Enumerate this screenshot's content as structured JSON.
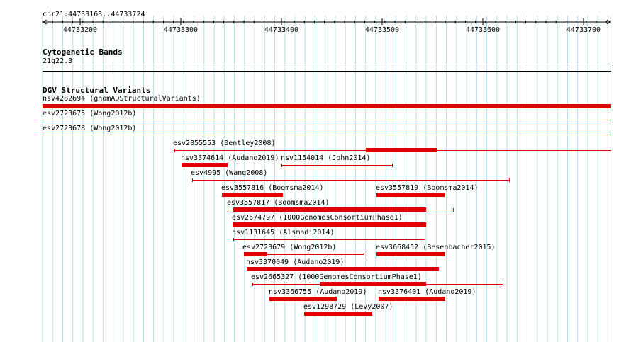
{
  "locus": "chr21:44733163..44733724",
  "ruler": {
    "ticks": [
      {
        "pos": 44733200,
        "label": "44733200"
      },
      {
        "pos": 44733300,
        "label": "44733300"
      },
      {
        "pos": 44733400,
        "label": "44733400"
      },
      {
        "pos": 44733500,
        "label": "44733500"
      },
      {
        "pos": 44733600,
        "label": "44733600"
      },
      {
        "pos": 44733700,
        "label": "44733700"
      }
    ]
  },
  "cytobands": {
    "title": "Cytogenetic Bands",
    "band": "21q22.3"
  },
  "dgv": {
    "title": "DGV Structural Variants",
    "features": [
      {
        "label": "nsv4282694 (gnomADStructuralVariants)"
      },
      {
        "label": "esv2723675 (Wong2012b)"
      },
      {
        "label": "esv2723678 (Wong2012b)"
      },
      {
        "label": "esv2055553 (Bentley2008)"
      },
      {
        "label": "nsv3374614 (Audano2019)"
      },
      {
        "label": "nsv1154014 (John2014)"
      },
      {
        "label": "esv4995 (Wang2008)"
      },
      {
        "label": "esv3557816 (Boomsma2014)"
      },
      {
        "label": "esv3557819 (Boomsma2014)"
      },
      {
        "label": "esv3557817 (Boomsma2014)"
      },
      {
        "label": "esv2674797 (1000GenomesConsortiumPhase1)"
      },
      {
        "label": "nsv1131645 (Alsmadi2014)"
      },
      {
        "label": "esv2723679 (Wong2012b)"
      },
      {
        "label": "esv3668452 (Besenbacher2015)"
      },
      {
        "label": "nsv3370049 (Audano2019)"
      },
      {
        "label": "esv2665327 (1000GenomesConsortiumPhase1)"
      },
      {
        "label": "nsv3366755 (Audano2019)"
      },
      {
        "label": "nsv3376401 (Audano2019)"
      },
      {
        "label": "esv1298729 (Levy2007)"
      }
    ]
  }
}
